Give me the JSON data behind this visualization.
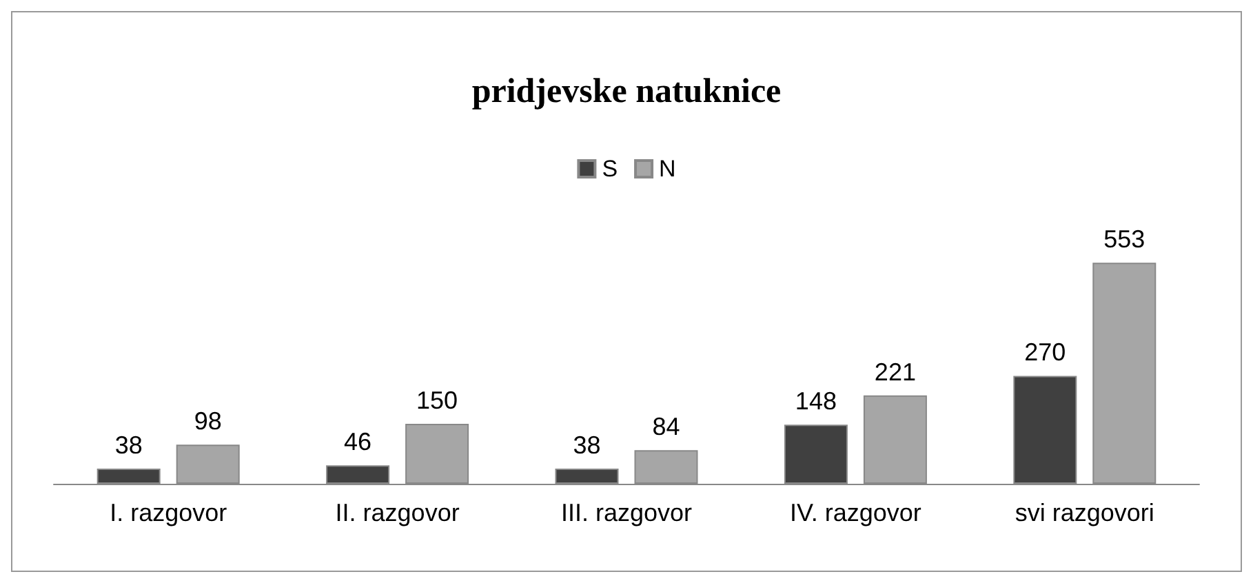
{
  "chart_data": {
    "type": "bar",
    "title": "pridjevske natuknice",
    "categories": [
      "I. razgovor",
      "II. razgovor",
      "III. razgovor",
      "IV. razgovor",
      "svi razgovori"
    ],
    "series": [
      {
        "name": "S",
        "color": "#404040",
        "values": [
          38,
          46,
          38,
          148,
          270
        ]
      },
      {
        "name": "N",
        "color": "#a6a6a6",
        "values": [
          98,
          150,
          84,
          221,
          553
        ]
      }
    ],
    "data_labels": true,
    "legend": "top"
  }
}
